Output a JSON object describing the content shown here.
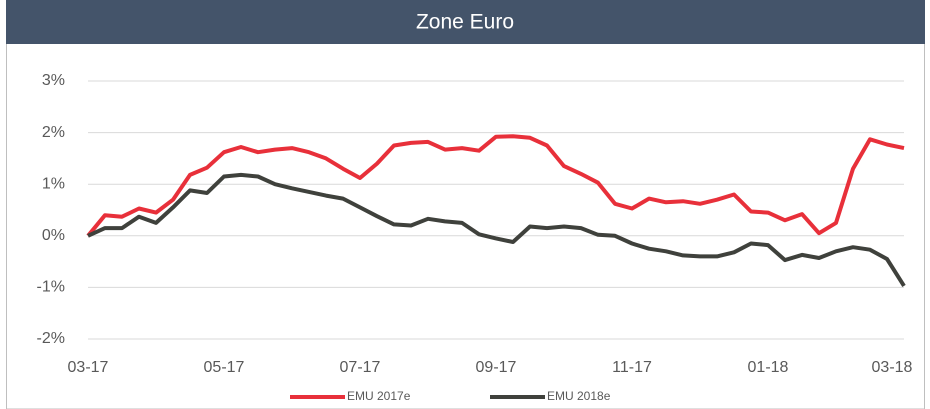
{
  "chart_data": {
    "type": "line",
    "title": "Zone Euro",
    "categories": [
      "03-17",
      null,
      null,
      null,
      null,
      null,
      null,
      null,
      "05-17",
      null,
      null,
      null,
      null,
      null,
      null,
      null,
      "07-17",
      null,
      null,
      null,
      null,
      null,
      null,
      null,
      "09-17",
      null,
      null,
      null,
      null,
      null,
      null,
      null,
      "11-17",
      null,
      null,
      null,
      null,
      null,
      null,
      null,
      "01-18",
      null,
      null,
      null,
      null,
      null,
      null,
      null,
      "03-18"
    ],
    "series": [
      {
        "name": "EMU 2017e",
        "color": "#e8303a",
        "values": [
          0,
          0.4,
          0.37,
          0.53,
          0.45,
          0.7,
          1.18,
          1.32,
          1.62,
          1.72,
          1.62,
          1.67,
          1.7,
          1.62,
          1.5,
          1.3,
          1.12,
          1.4,
          1.75,
          1.8,
          1.82,
          1.67,
          1.7,
          1.65,
          1.92,
          1.93,
          1.9,
          1.75,
          1.35,
          1.2,
          1.03,
          0.62,
          0.53,
          0.72,
          0.65,
          0.67,
          0.62,
          0.7,
          0.8,
          0.47,
          0.45,
          0.3,
          0.42,
          0.05,
          0.25,
          1.3,
          1.87,
          1.77,
          1.7
        ]
      },
      {
        "name": "EMU 2018e",
        "color": "#3f413c",
        "values": [
          0,
          0.15,
          0.15,
          0.37,
          0.25,
          0.55,
          0.88,
          0.83,
          1.15,
          1.18,
          1.15,
          1.0,
          0.92,
          0.85,
          0.78,
          0.72,
          0.55,
          0.38,
          0.22,
          0.2,
          0.33,
          0.28,
          0.25,
          0.03,
          -0.05,
          -0.12,
          0.18,
          0.15,
          0.18,
          0.15,
          0.02,
          0.0,
          -0.15,
          -0.25,
          -0.3,
          -0.38,
          -0.4,
          -0.4,
          -0.32,
          -0.15,
          -0.18,
          -0.47,
          -0.37,
          -0.43,
          -0.3,
          -0.22,
          -0.27,
          -0.45,
          -0.97
        ]
      }
    ],
    "ylim": [
      -2,
      3
    ],
    "yticks": [
      {
        "value": -2,
        "label": "-2%"
      },
      {
        "value": -1,
        "label": "-1%"
      },
      {
        "value": 0,
        "label": "0%"
      },
      {
        "value": 1,
        "label": "1%"
      },
      {
        "value": 2,
        "label": "2%"
      },
      {
        "value": 3,
        "label": "3%"
      }
    ],
    "grid": true,
    "legend": "bottom"
  }
}
